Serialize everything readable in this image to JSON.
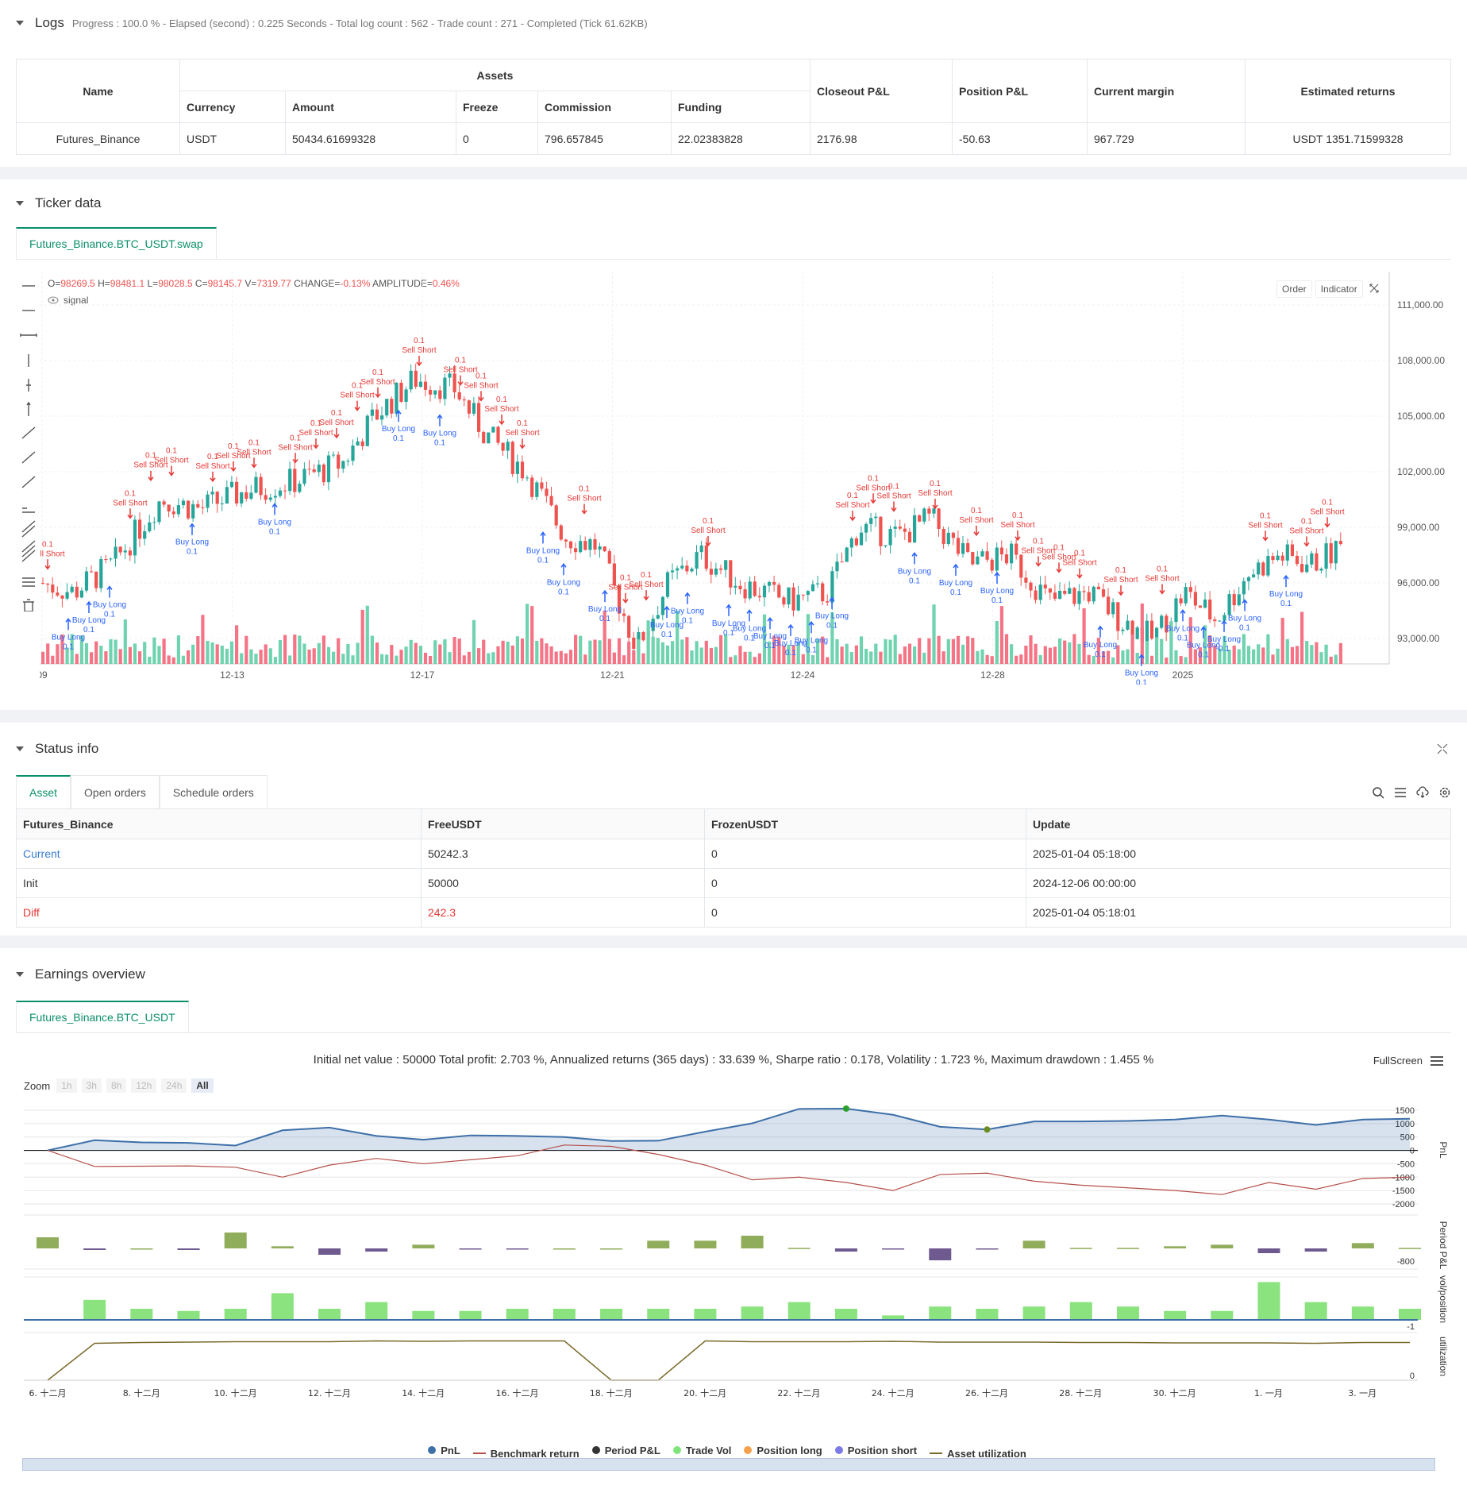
{
  "logs": {
    "title": "Logs",
    "info": "Progress : 100.0 % - Elapsed (second) : 0.225  Seconds - Total log count : 562 - Trade count : 271 - Completed (Tick 61.62KB)",
    "table": {
      "name_header": "Name",
      "assets_header": "Assets",
      "sub_headers": [
        "Currency",
        "Amount",
        "Freeze",
        "Commission",
        "Funding"
      ],
      "right_headers": [
        "Closeout P&L",
        "Position P&L",
        "Current margin",
        "Estimated returns"
      ],
      "row": [
        "Futures_Binance",
        "USDT",
        "50434.61699328",
        "0",
        "796.657845",
        "22.02383828",
        "2176.98",
        "-50.63",
        "967.729",
        "USDT 1351.71599328"
      ]
    }
  },
  "ticker": {
    "title": "Ticker data",
    "tab": "Futures_Binance.BTC_USDT.swap",
    "ohlc": {
      "o_label": "O=",
      "o": "98269.5",
      "h_label": "H=",
      "h": "98481.1",
      "l_label": "L=",
      "l": "98028.5",
      "c_label": "C=",
      "c": "98145.7",
      "v_label": "V=",
      "v": "7319.77",
      "change_label": "CHANGE=",
      "change": "-0.13%",
      "amp_label": "AMPLITUDE=",
      "amp": "0.46%"
    },
    "signal_label": "signal",
    "buttons": [
      "Order",
      "Indicator"
    ],
    "y_ticks": [
      "111,000.00",
      "108,000.00",
      "105,000.00",
      "102,000.00",
      "99,000.00",
      "96,000.00",
      "93,000.00"
    ],
    "x_ticks": [
      "09",
      "12-13",
      "12-17",
      "12-21",
      "12-24",
      "12-28",
      "2025"
    ],
    "buy_label": "Buy Long",
    "sell_label": "Sell Short",
    "qty_label": "0.1",
    "colors": {
      "up": "#26a69a",
      "down": "#ef5350",
      "buy": "#2962ff",
      "sell": "#e53935"
    }
  },
  "status": {
    "title": "Status info",
    "tabs": [
      "Asset",
      "Open orders",
      "Schedule orders"
    ],
    "headers": [
      "Futures_Binance",
      "FreeUSDT",
      "FrozenUSDT",
      "Update"
    ],
    "rows": [
      [
        "Current",
        "50242.3",
        "0",
        "2025-01-04 05:18:00"
      ],
      [
        "Init",
        "50000",
        "0",
        "2024-12-06 00:00:00"
      ],
      [
        "Diff",
        "242.3",
        "0",
        "2025-01-04 05:18:01"
      ]
    ]
  },
  "earnings": {
    "title": "Earnings overview",
    "tab": "Futures_Binance.BTC_USDT",
    "summary": "Initial net value : 50000  Total profit: 2.703 %, Annualized returns (365 days) : 33.639 %, Sharpe ratio : 0.178, Volatility : 1.723 %, Maximum drawdown : 1.455 %",
    "fullscreen": "FullScreen",
    "zoom_label": "Zoom",
    "zoom_buttons": [
      "1h",
      "3h",
      "8h",
      "12h",
      "24h",
      "All"
    ],
    "pnl_ticks": [
      "1500",
      "1000",
      "500",
      "0",
      "-500",
      "-1000",
      "-1500",
      "-2000"
    ],
    "period_tick": "-800",
    "vol_tick": "-1",
    "util_tick": "0",
    "axis_titles": [
      "PnL",
      "Period P&L",
      "vol/position",
      "utilization"
    ],
    "x_ticks": [
      "6. 十二月",
      "8. 十二月",
      "10. 十二月",
      "12. 十二月",
      "14. 十二月",
      "16. 十二月",
      "18. 十二月",
      "20. 十二月",
      "22. 十二月",
      "24. 十二月",
      "26. 十二月",
      "28. 十二月",
      "30. 十二月",
      "1. 一月",
      "3. 一月"
    ],
    "legend": [
      {
        "label": "PnL",
        "color": "#3d6fa8",
        "kind": "dot"
      },
      {
        "label": "Benchmark return",
        "color": "#b5504b",
        "kind": "line"
      },
      {
        "label": "Period P&L",
        "color": "#333333",
        "kind": "dot"
      },
      {
        "label": "Trade Vol",
        "color": "#7fe57a",
        "kind": "dot"
      },
      {
        "label": "Position long",
        "color": "#f5a04a",
        "kind": "dot"
      },
      {
        "label": "Position short",
        "color": "#7b7be8",
        "kind": "dot"
      },
      {
        "label": "Asset utilization",
        "color": "#7a6a2a",
        "kind": "line"
      }
    ],
    "chart_data": {
      "type": "line",
      "series": [
        {
          "name": "PnL",
          "values": [
            0,
            380,
            300,
            280,
            180,
            750,
            850,
            540,
            400,
            560,
            540,
            500,
            350,
            360,
            700,
            1010,
            1550,
            1560,
            1330,
            880,
            780,
            1080,
            1080,
            1100,
            1150,
            1300,
            1150,
            950,
            1150,
            1180
          ]
        },
        {
          "name": "Benchmark return",
          "values": [
            0,
            -600,
            -590,
            -580,
            -630,
            -1000,
            -550,
            -300,
            -500,
            -350,
            -200,
            200,
            150,
            -150,
            -550,
            -1100,
            -1000,
            -1200,
            -1500,
            -900,
            -850,
            -1150,
            -1300,
            -1400,
            -1500,
            -1650,
            -1200,
            -1450,
            -1050,
            -1000
          ]
        },
        {
          "name": "Period P&L",
          "values": [
            420,
            -60,
            0,
            -60,
            600,
            80,
            -240,
            -120,
            140,
            -20,
            -40,
            0,
            0,
            290,
            290,
            480,
            20,
            -120,
            -40,
            -450,
            -40,
            290,
            20,
            20,
            80,
            140,
            -180,
            -120,
            200,
            20
          ]
        },
        {
          "name": "Trade Vol",
          "values": [
            0,
            0.9,
            0.5,
            0.4,
            0.5,
            1.2,
            0.5,
            0.8,
            0.4,
            0.4,
            0.5,
            0.5,
            0.5,
            0.5,
            0.5,
            0.6,
            0.8,
            0.5,
            0.2,
            0.6,
            0.5,
            0.6,
            0.8,
            0.6,
            0.4,
            0.4,
            1.7,
            0.8,
            0.6,
            0.5
          ]
        },
        {
          "name": "Asset utilization",
          "values": [
            0,
            0.93,
            0.95,
            0.96,
            0.97,
            0.97,
            0.97,
            0.99,
            0.98,
            0.99,
            0.99,
            0.99,
            0,
            0,
            0.99,
            0.97,
            0.97,
            0.97,
            0.98,
            0.96,
            0.96,
            0.96,
            0.95,
            0.95,
            0.94,
            0.94,
            0.94,
            0.93,
            0.95,
            0.95
          ]
        }
      ]
    }
  }
}
